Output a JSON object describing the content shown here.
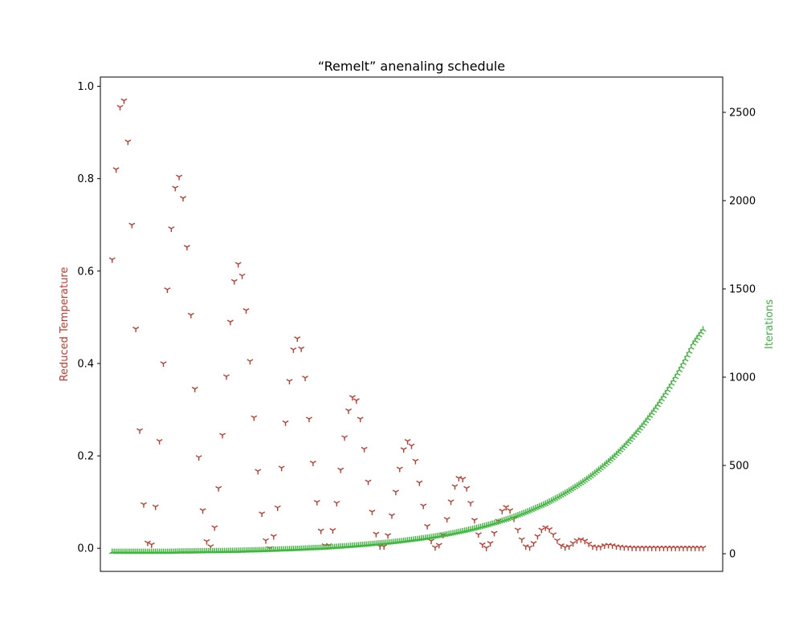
{
  "chart_data": {
    "type": "scatter",
    "title": "“Remelt” anenaling schedule",
    "xlabel": "",
    "ylabel_left": "Reduced Temperature",
    "ylabel_right": "Iterations",
    "x_axis_ticks": "none",
    "xlim": [
      -6,
      310
    ],
    "ylim_left": [
      -0.05,
      1.02
    ],
    "ylim_right": [
      -100,
      2700
    ],
    "yticks_left": [
      "0.0",
      "0.2",
      "0.4",
      "0.6",
      "0.8",
      "1.0"
    ],
    "yticks_right": [
      "0",
      "500",
      "1000",
      "1500",
      "2000",
      "2500"
    ],
    "grid": false,
    "legend": "none",
    "colors": {
      "temperature": "#c0392b",
      "iterations": "#3db63d",
      "axes": "#000000"
    },
    "markers": {
      "temperature": "tri_down",
      "iterations": "tri_up"
    },
    "series": [
      {
        "axis": "left",
        "x": [
          0,
          2,
          4,
          6,
          8,
          10,
          12,
          14,
          16,
          18,
          20,
          22,
          24,
          26,
          28,
          30,
          32,
          34,
          36,
          38,
          40,
          42,
          44,
          46,
          48,
          50,
          52,
          54,
          56,
          58,
          60,
          62,
          64,
          66,
          68,
          70,
          72,
          74,
          76,
          78,
          80,
          82,
          84,
          86,
          88,
          90,
          92,
          94,
          96,
          98,
          100,
          102,
          104,
          106,
          108,
          110,
          112,
          114,
          116,
          118,
          120,
          122,
          124,
          126,
          128,
          130,
          132,
          134,
          136,
          138,
          140,
          142,
          144,
          146,
          148,
          150,
          152,
          154,
          156,
          158,
          160,
          162,
          164,
          166,
          168,
          170,
          172,
          174,
          176,
          178,
          180,
          182,
          184,
          186,
          188,
          190,
          192,
          194,
          196,
          198,
          200,
          202,
          204,
          206,
          208,
          210,
          212,
          214,
          216,
          218,
          220,
          222,
          224,
          226,
          228,
          230,
          232,
          234,
          236,
          238,
          240,
          242,
          244,
          246,
          248,
          250,
          252,
          254,
          256,
          258,
          260,
          262,
          264,
          266,
          268,
          270,
          272,
          274,
          276,
          278,
          280,
          282,
          284,
          286,
          288,
          290,
          292,
          294,
          296,
          298,
          300
        ],
        "values": [
          0.625,
          0.82,
          0.955,
          0.969,
          0.88,
          0.7,
          0.475,
          0.255,
          0.095,
          0.012,
          0.008,
          0.09,
          0.232,
          0.4,
          0.56,
          0.692,
          0.78,
          0.804,
          0.758,
          0.652,
          0.505,
          0.345,
          0.197,
          0.082,
          0.015,
          0.004,
          0.045,
          0.13,
          0.245,
          0.372,
          0.49,
          0.578,
          0.615,
          0.59,
          0.515,
          0.405,
          0.283,
          0.167,
          0.075,
          0.017,
          0.0,
          0.026,
          0.088,
          0.174,
          0.272,
          0.362,
          0.43,
          0.454,
          0.432,
          0.369,
          0.28,
          0.185,
          0.1,
          0.038,
          0.006,
          0.006,
          0.039,
          0.098,
          0.17,
          0.24,
          0.298,
          0.327,
          0.32,
          0.28,
          0.215,
          0.144,
          0.079,
          0.031,
          0.004,
          0.004,
          0.028,
          0.071,
          0.122,
          0.172,
          0.214,
          0.232,
          0.222,
          0.189,
          0.142,
          0.092,
          0.048,
          0.016,
          0.002,
          0.007,
          0.029,
          0.063,
          0.101,
          0.134,
          0.152,
          0.15,
          0.13,
          0.098,
          0.061,
          0.03,
          0.008,
          0.001,
          0.011,
          0.033,
          0.059,
          0.081,
          0.089,
          0.082,
          0.064,
          0.04,
          0.019,
          0.004,
          0.002,
          0.011,
          0.026,
          0.04,
          0.045,
          0.041,
          0.03,
          0.017,
          0.006,
          0.002,
          0.004,
          0.011,
          0.017,
          0.019,
          0.016,
          0.01,
          0.004,
          0.002,
          0.003,
          0.006,
          0.007,
          0.006,
          0.004,
          0.003,
          0.002,
          0.002,
          0.001,
          0.001,
          0.001,
          0.001,
          0.001,
          0.001,
          0.001,
          0.001,
          0.001,
          0.001,
          0.001,
          0.001,
          0.001,
          0.001,
          0.001,
          0.001,
          0.001,
          0.001,
          0.001
        ]
      },
      {
        "axis": "right",
        "x": [
          0,
          5,
          10,
          15,
          20,
          25,
          30,
          35,
          40,
          45,
          50,
          55,
          60,
          65,
          70,
          75,
          80,
          85,
          90,
          95,
          100,
          105,
          110,
          115,
          120,
          125,
          130,
          135,
          140,
          145,
          150,
          155,
          160,
          165,
          170,
          175,
          180,
          185,
          190,
          195,
          200,
          205,
          210,
          215,
          220,
          225,
          230,
          235,
          240,
          245,
          250,
          255,
          260,
          265,
          270,
          275,
          280,
          285,
          290,
          295,
          300
        ],
        "values": [
          10,
          10,
          10,
          10,
          10,
          10,
          10,
          12,
          12,
          13,
          14,
          14,
          15,
          16,
          18,
          19,
          21,
          23,
          25,
          27,
          30,
          32,
          35,
          39,
          43,
          47,
          52,
          57,
          62,
          68,
          75,
          82,
          90,
          99,
          109,
          120,
          132,
          145,
          160,
          176,
          193,
          213,
          234,
          258,
          283,
          312,
          343,
          378,
          415,
          457,
          503,
          553,
          609,
          670,
          737,
          811,
          892,
          982,
          1080,
          1190,
          1270
        ]
      }
    ]
  }
}
